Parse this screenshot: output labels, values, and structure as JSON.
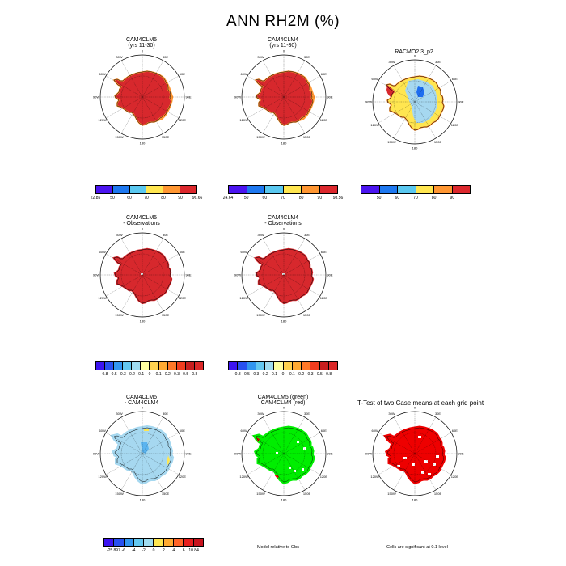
{
  "page_title": "ANN RH2M (%)",
  "longitude_labels": [
    "0",
    "30E",
    "60E",
    "90E",
    "120E",
    "150E",
    "180",
    "150W",
    "120W",
    "90W",
    "60W",
    "30W"
  ],
  "palettes": {
    "abs": [
      "#4b14f0",
      "#1e78f0",
      "#5ac8f0",
      "#ffe650",
      "#ff9632",
      "#dc282d"
    ],
    "diff": [
      "#3c14f0",
      "#2850f0",
      "#3296f0",
      "#64c8f0",
      "#a0dcf0",
      "#ffffa0",
      "#ffd250",
      "#ffaa32",
      "#ff7828",
      "#f03c1e",
      "#c81e1e",
      "#dc2828"
    ],
    "diff2": [
      "#3c14f0",
      "#2850f0",
      "#3296f0",
      "#64c8f0",
      "#a0dcf0",
      "#ffe650",
      "#ffaa32",
      "#ff6428",
      "#e61e1e",
      "#c8141e"
    ]
  },
  "panels": [
    {
      "title": "CAM4CLM5",
      "subtitle": "(yrs 11-30)",
      "colorbar_labels": [
        "22.85",
        "50",
        "60",
        "70",
        "80",
        "90",
        "96.66"
      ]
    },
    {
      "title": "CAM4CLM4",
      "subtitle": "(yrs 11-30)",
      "colorbar_labels": [
        "24.64",
        "50",
        "60",
        "70",
        "80",
        "90",
        "98.56"
      ]
    },
    {
      "title": "RACMO2.3_p2",
      "subtitle": "",
      "colorbar_labels": [
        "50",
        "60",
        "70",
        "80",
        "90"
      ]
    },
    {
      "title": "CAM4CLM5",
      "subtitle": "- Observations",
      "colorbar_labels": [
        "-0.8",
        "-0.5",
        "-0.3",
        "-0.2",
        "-0.1",
        "0",
        "0.1",
        "0.2",
        "0.3",
        "0.5",
        "0.8"
      ]
    },
    {
      "title": "CAM4CLM4",
      "subtitle": "- Observations",
      "colorbar_labels": [
        "-0.8",
        "-0.5",
        "-0.3",
        "-0.2",
        "-0.1",
        "0",
        "0.1",
        "0.2",
        "0.3",
        "0.5",
        "0.8"
      ]
    },
    {
      "title": "CAM4CLM5",
      "subtitle": "- CAM4CLM4",
      "colorbar_labels": [
        "-25.897",
        "-6",
        "-4",
        "-2",
        "0",
        "2",
        "4",
        "6",
        "10.84"
      ]
    },
    {
      "title": "CAM4CLM5 (green)",
      "subtitle": "CAM4CLM4 (red)",
      "note": "Model relative to Obs"
    },
    {
      "title": "T-Test of two Case means at each grid point",
      "subtitle": "",
      "note": "Cells are significant at 0.1 level"
    }
  ],
  "colors": {
    "main_red": "#d7282d",
    "orange": "#ff9632",
    "light_blue": "#a6d8f0",
    "yellow": "#ffe650",
    "green": "#00ee00",
    "red": "#ee0000",
    "blue": "#1e6ef0"
  }
}
